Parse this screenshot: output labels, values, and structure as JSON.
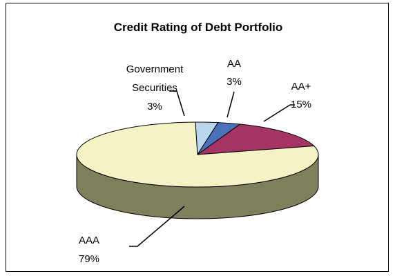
{
  "chart_data": {
    "type": "pie",
    "title": "Credit Rating of Debt Portfolio",
    "slices": [
      {
        "label": "Government Securities",
        "value": 3,
        "display": "3%",
        "color": "#bcd6ec",
        "side_color": "#8a9aa6",
        "label_lines": [
          "Government",
          "Securities",
          "3%"
        ]
      },
      {
        "label": "AA",
        "value": 3,
        "display": "3%",
        "color": "#4a72b8",
        "side_color": "#2f4d82",
        "label_lines": [
          "AA",
          "3%"
        ]
      },
      {
        "label": "AA+",
        "value": 15,
        "display": "15%",
        "color": "#a33464",
        "side_color": "#6e1f42",
        "label_lines": [
          "AA+",
          "15%"
        ]
      },
      {
        "label": "AAA",
        "value": 79,
        "display": "79%",
        "color": "#f5f3c6",
        "side_color": "#7f7f5c",
        "label_lines": [
          "AAA",
          "79%"
        ]
      }
    ],
    "legend": "none",
    "style": "3d"
  }
}
